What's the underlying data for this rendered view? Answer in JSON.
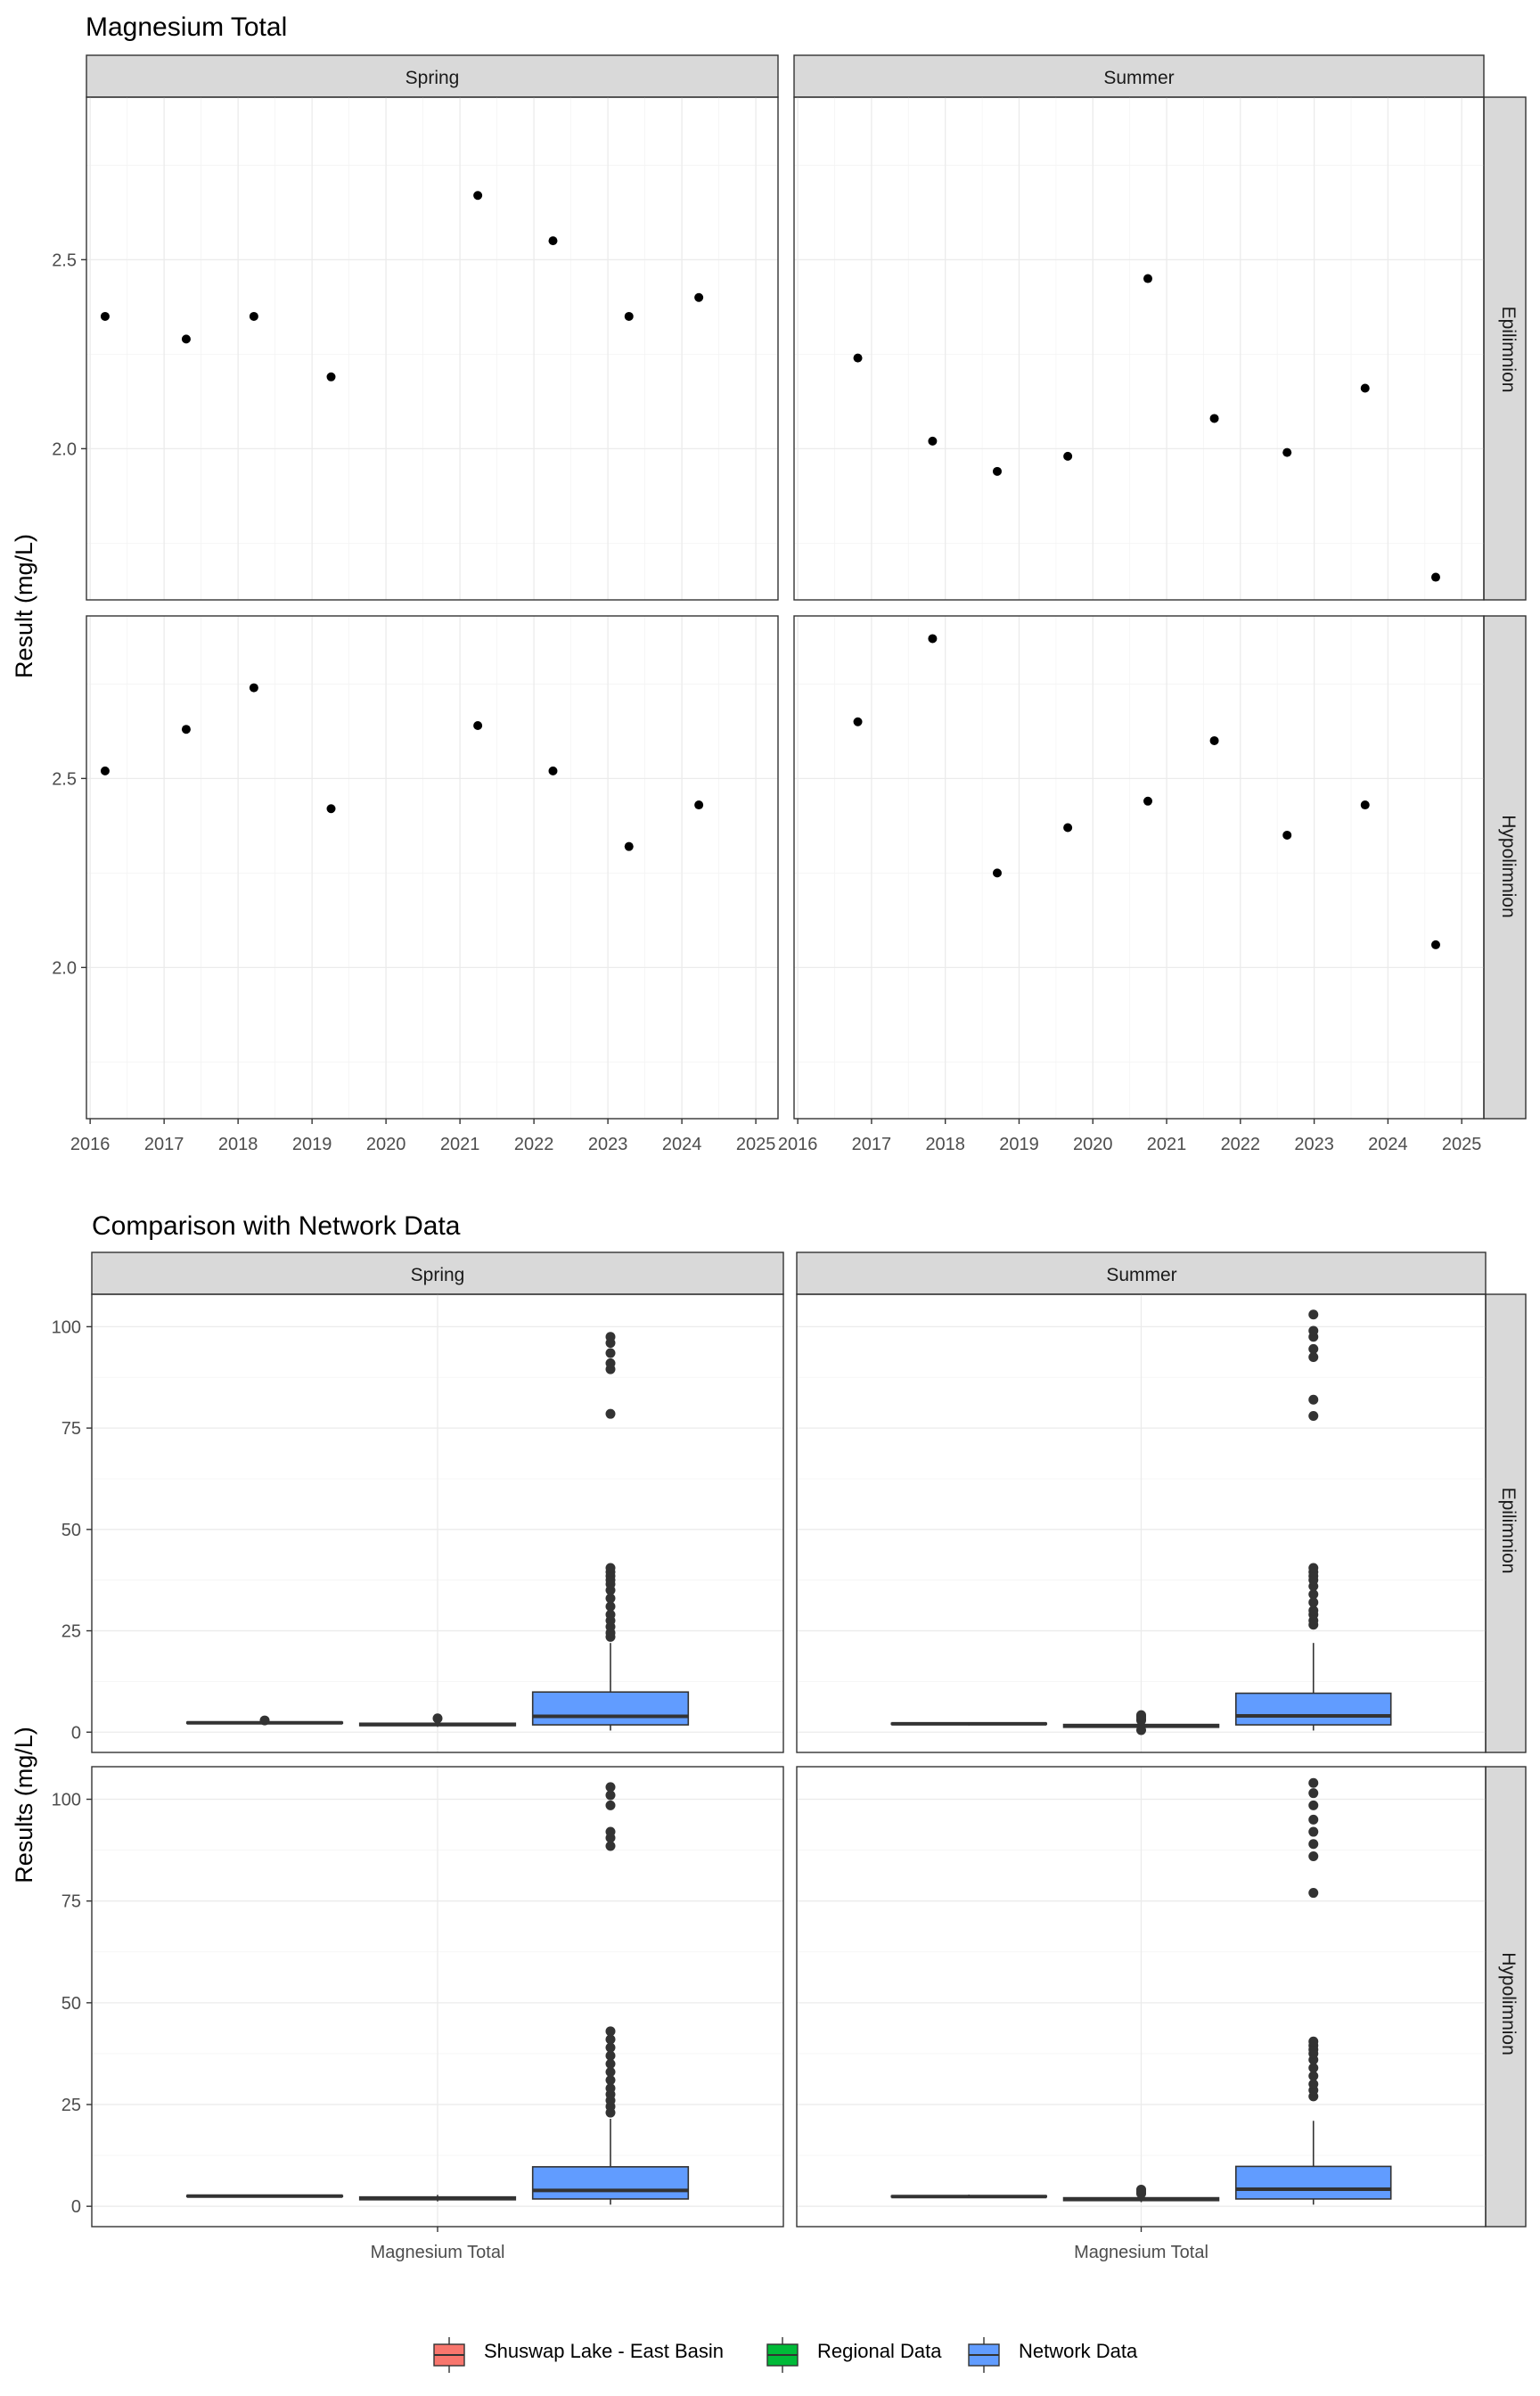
{
  "chart_data": [
    {
      "type": "scatter",
      "title": "Magnesium Total",
      "xlabel": "",
      "ylabel": "Result (mg/L)",
      "facet_columns": [
        "Spring",
        "Summer"
      ],
      "facet_rows": [
        "Epilimnion",
        "Hypolimnion"
      ],
      "x_ticks": [
        "2016",
        "2017",
        "2018",
        "2019",
        "2020",
        "2021",
        "2022",
        "2023",
        "2024",
        "2025"
      ],
      "xlim": [
        2015.95,
        2025.3
      ],
      "y_ticks": [
        "2.0",
        "2.5"
      ],
      "ylim": [
        1.6,
        2.93
      ],
      "grid": true,
      "panels": [
        {
          "column": "Spring",
          "row": "Epilimnion",
          "x": [
            "2016-03-15",
            "2017-04-20",
            "2018-03-20",
            "2019-04-05",
            "2021-03-30",
            "2022-04-05",
            "2023-04-15",
            "2024-03-25"
          ],
          "y": [
            2.35,
            2.29,
            2.35,
            2.19,
            2.67,
            2.55,
            2.35,
            2.4
          ]
        },
        {
          "column": "Summer",
          "row": "Epilimnion",
          "x": [
            "2016-10-25",
            "2017-10-30",
            "2018-09-15",
            "2019-08-30",
            "2020-09-30",
            "2021-08-25",
            "2022-08-20",
            "2023-09-10",
            "2024-08-25"
          ],
          "y": [
            2.24,
            2.02,
            1.94,
            1.98,
            2.45,
            2.08,
            1.99,
            2.16,
            1.66
          ]
        },
        {
          "column": "Spring",
          "row": "Hypolimnion",
          "x": [
            "2016-03-15",
            "2017-04-20",
            "2018-03-20",
            "2019-04-05",
            "2021-03-30",
            "2022-04-05",
            "2023-04-15",
            "2024-03-25"
          ],
          "y": [
            2.52,
            2.63,
            2.74,
            2.42,
            2.64,
            2.52,
            2.32,
            2.43
          ]
        },
        {
          "column": "Summer",
          "row": "Hypolimnion",
          "x": [
            "2016-10-25",
            "2017-10-30",
            "2018-09-15",
            "2019-08-30",
            "2020-09-30",
            "2021-08-25",
            "2022-08-20",
            "2023-09-10",
            "2024-08-25"
          ],
          "y": [
            2.65,
            2.87,
            2.25,
            2.37,
            2.44,
            2.6,
            2.35,
            2.43,
            2.06
          ]
        }
      ]
    },
    {
      "type": "box",
      "title": "Comparison with Network Data",
      "xlabel": "",
      "ylabel": "Results (mg/L)",
      "facet_columns": [
        "Spring",
        "Summer"
      ],
      "facet_rows": [
        "Epilimnion",
        "Hypolimnion"
      ],
      "category": "Magnesium Total",
      "groups": [
        "Shuswap Lake - East Basin",
        "Regional Data",
        "Network Data"
      ],
      "group_colors": [
        "#F8766D",
        "#00BA38",
        "#619CFF"
      ],
      "y_ticks": [
        "0",
        "25",
        "50",
        "75",
        "100"
      ],
      "ylim": [
        -5,
        108
      ],
      "grid": true,
      "legend_position": "bottom",
      "panels": [
        {
          "column": "Spring",
          "row": "Epilimnion",
          "boxes": [
            {
              "group": "Shuswap Lake - East Basin",
              "q1": 2.2,
              "median": 2.3,
              "q3": 2.45,
              "whisker_low": 2.15,
              "whisker_high": 2.7,
              "outliers": [
                2.9
              ]
            },
            {
              "group": "Regional Data",
              "q1": 1.6,
              "median": 1.9,
              "q3": 2.2,
              "whisker_low": 1.3,
              "whisker_high": 2.7,
              "outliers": [
                3.4
              ]
            },
            {
              "group": "Network Data",
              "q1": 1.8,
              "median": 3.9,
              "q3": 9.9,
              "whisker_low": 0.4,
              "whisker_high": 22,
              "outliers": [
                23.5,
                24.5,
                26,
                27.5,
                29,
                31,
                33,
                35,
                36.5,
                37.5,
                38.5,
                39.5,
                40.5,
                78.5,
                89.5,
                91,
                93.5,
                96,
                97.5
              ]
            }
          ]
        },
        {
          "column": "Summer",
          "row": "Epilimnion",
          "boxes": [
            {
              "group": "Shuswap Lake - East Basin",
              "q1": 1.95,
              "median": 2.05,
              "q3": 2.2,
              "whisker_low": 1.65,
              "whisker_high": 2.45,
              "outliers": []
            },
            {
              "group": "Regional Data",
              "q1": 1.2,
              "median": 1.55,
              "q3": 1.9,
              "whisker_low": 0.8,
              "whisker_high": 2.6,
              "outliers": [
                0.5,
                2.9,
                3.3,
                3.8,
                4.2
              ]
            },
            {
              "group": "Network Data",
              "q1": 1.8,
              "median": 4.0,
              "q3": 9.6,
              "whisker_low": 0.4,
              "whisker_high": 22,
              "outliers": [
                26.5,
                27.5,
                29,
                30,
                32,
                34,
                36,
                37.5,
                38.5,
                39.5,
                40.5,
                78,
                82,
                92.5,
                94.5,
                97.5,
                99,
                103
              ]
            }
          ]
        },
        {
          "column": "Spring",
          "row": "Hypolimnion",
          "boxes": [
            {
              "group": "Shuswap Lake - East Basin",
              "q1": 2.4,
              "median": 2.5,
              "q3": 2.63,
              "whisker_low": 2.3,
              "whisker_high": 2.75,
              "outliers": []
            },
            {
              "group": "Regional Data",
              "q1": 1.6,
              "median": 1.95,
              "q3": 2.3,
              "whisker_low": 1.2,
              "whisker_high": 2.8,
              "outliers": []
            },
            {
              "group": "Network Data",
              "q1": 1.8,
              "median": 3.9,
              "q3": 9.7,
              "whisker_low": 0.4,
              "whisker_high": 21.5,
              "outliers": [
                23,
                24.5,
                26,
                27.5,
                29,
                31,
                33,
                35,
                37,
                39,
                41,
                43,
                88.5,
                90.5,
                92,
                98.5,
                101,
                103
              ]
            }
          ]
        },
        {
          "column": "Summer",
          "row": "Hypolimnion",
          "boxes": [
            {
              "group": "Shuswap Lake - East Basin",
              "q1": 2.3,
              "median": 2.4,
              "q3": 2.55,
              "whisker_low": 2.05,
              "whisker_high": 2.87,
              "outliers": []
            },
            {
              "group": "Regional Data",
              "q1": 1.4,
              "median": 1.75,
              "q3": 2.1,
              "whisker_low": 1.0,
              "whisker_high": 2.7,
              "outliers": [
                3.1,
                3.6,
                4.1
              ]
            },
            {
              "group": "Network Data",
              "q1": 1.8,
              "median": 4.2,
              "q3": 9.8,
              "whisker_low": 0.4,
              "whisker_high": 21,
              "outliers": [
                27,
                28.5,
                30,
                32,
                34,
                36,
                37.5,
                38.5,
                39.5,
                40.5,
                77,
                86,
                89,
                92,
                95,
                98.5,
                101.5,
                104
              ]
            }
          ]
        }
      ]
    }
  ]
}
